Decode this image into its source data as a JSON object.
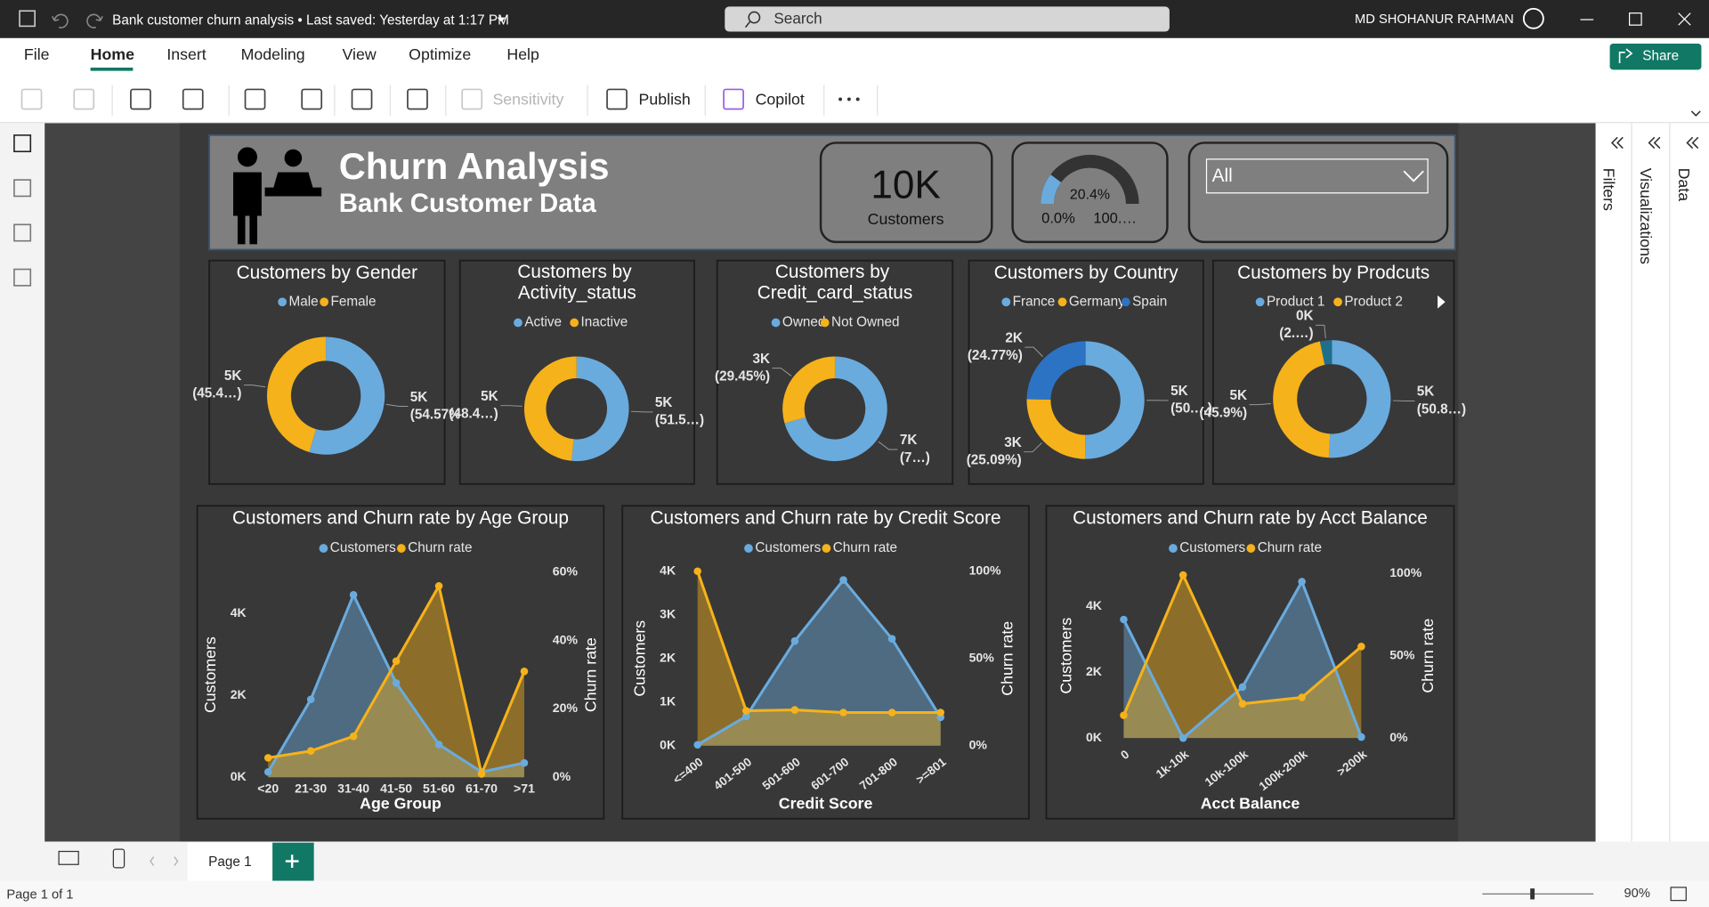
{
  "window": {
    "title": "Bank customer churn analysis • Last saved: Yesterday at 1:17 PM",
    "search": "Search",
    "user": "MD SHOHANUR RAHMAN"
  },
  "menu": [
    "File",
    "Home",
    "Insert",
    "Modeling",
    "View",
    "Optimize",
    "Help"
  ],
  "share": "Share",
  "ribbon": [
    "Sensitivity",
    "Publish",
    "Copilot"
  ],
  "panes": [
    "Filters",
    "Visualizations",
    "Data"
  ],
  "header": {
    "title": "Churn Analysis",
    "subtitle": "Bank Customer Data"
  },
  "card": {
    "value": "10K",
    "label": "Customers"
  },
  "gauge": {
    "value": {
      "value": 20.4,
      "label": "20.4%"
    },
    "min": {
      "value": 0,
      "label": "0.0%"
    },
    "max": {
      "value": 100,
      "label": "100.…"
    }
  },
  "slicer": "All",
  "pages": {
    "tab": "Page 1",
    "status": "Page 1 of 1",
    "zoom": "90%"
  },
  "chart_data": [
    {
      "type": "pie",
      "title": "Customers by Gender",
      "categories": [
        "Male",
        "Female"
      ],
      "values": [
        5457,
        4543
      ],
      "value_labels": [
        "5K",
        "5K"
      ],
      "percent_labels": [
        "(54.57%)",
        "(45.4…)"
      ],
      "colors": [
        "#6AABDE",
        "#F5B21B"
      ]
    },
    {
      "type": "pie",
      "title": "Customers by Activity_status",
      "categories": [
        "Active",
        "Inactive"
      ],
      "values": [
        5151,
        4849
      ],
      "value_labels": [
        "5K",
        "5K"
      ],
      "percent_labels": [
        "(51.5…)",
        "(48.4…)"
      ],
      "colors": [
        "#6AABDE",
        "#F5B21B"
      ]
    },
    {
      "type": "pie",
      "title": "Customers by Credit_card_status",
      "categories": [
        "Owned",
        "Not Owned"
      ],
      "values": [
        7055,
        2945
      ],
      "value_labels": [
        "7K",
        "3K"
      ],
      "percent_labels": [
        "(7…)",
        "(29.45%)"
      ],
      "colors": [
        "#6AABDE",
        "#F5B21B"
      ]
    },
    {
      "type": "pie",
      "title": "Customers by Country",
      "categories": [
        "France",
        "Germany",
        "Spain"
      ],
      "values": [
        5014,
        2509,
        2477
      ],
      "value_labels": [
        "5K",
        "3K",
        "2K"
      ],
      "percent_labels": [
        "(50.…)",
        "(25.09%)",
        "(24.77%)"
      ],
      "colors": [
        "#6AABDE",
        "#F5B21B",
        "#2C73C4"
      ]
    },
    {
      "type": "pie",
      "title": "Customers by Prodcuts",
      "categories": [
        "Product 1",
        "Product 2",
        null
      ],
      "values": [
        5084,
        4590,
        326
      ],
      "value_labels": [
        "5K",
        "5K",
        "0K"
      ],
      "percent_labels": [
        "(50.8…)",
        "(45.9%)",
        "(2.…)"
      ],
      "colors": [
        "#6AABDE",
        "#F5B21B",
        "#1F6E8C"
      ]
    },
    {
      "type": "combo",
      "title": "Customers and Churn rate by Age Group",
      "x_label": "Age Group",
      "y_label": "Customers",
      "y2_label": "Churn rate",
      "categories": [
        "<20",
        "21-30",
        "31-40",
        "41-50",
        "51-60",
        "61-70",
        ">71"
      ],
      "series": [
        {
          "name": "Customers",
          "color": "#6AABDE",
          "values": [
            130,
            1900,
            4450,
            2300,
            800,
            130,
            350
          ]
        },
        {
          "name": "Churn rate",
          "color": "#F5B21B",
          "axis": "y2",
          "values": [
            5.7,
            7.7,
            12,
            34,
            56,
            1,
            31
          ]
        }
      ],
      "ylim": [
        0,
        5000
      ],
      "yticks": [
        {
          "value": 0,
          "label": "0K"
        },
        {
          "value": 2000,
          "label": "2K"
        },
        {
          "value": 4000,
          "label": "4K"
        }
      ],
      "y2lim": [
        0,
        60
      ],
      "y2ticks": [
        {
          "value": 0,
          "label": "0%"
        },
        {
          "value": 20,
          "label": "20%"
        },
        {
          "value": 40,
          "label": "40%"
        },
        {
          "value": 60,
          "label": "60%"
        }
      ]
    },
    {
      "type": "combo",
      "title": "Customers and Churn rate by Credit Score",
      "x_label": "Credit Score",
      "y_label": "Customers",
      "y2_label": "Churn rate",
      "categories": [
        "<=400",
        "401-500",
        "501-600",
        "601-700",
        "701-800",
        ">=801"
      ],
      "series": [
        {
          "name": "Customers",
          "color": "#6AABDE",
          "values": [
            20,
            670,
            2400,
            3800,
            2450,
            650
          ]
        },
        {
          "name": "Churn rate",
          "color": "#F5B21B",
          "axis": "y2",
          "values": [
            100,
            20,
            20.5,
            19,
            19,
            19
          ]
        }
      ],
      "ylim": [
        0,
        4000
      ],
      "yticks": [
        {
          "value": 0,
          "label": "0K"
        },
        {
          "value": 1000,
          "label": "1K"
        },
        {
          "value": 2000,
          "label": "2K"
        },
        {
          "value": 3000,
          "label": "3K"
        },
        {
          "value": 4000,
          "label": "4K"
        }
      ],
      "y2lim": [
        0,
        100
      ],
      "y2ticks": [
        {
          "value": 0,
          "label": "0%"
        },
        {
          "value": 50,
          "label": "50%"
        },
        {
          "value": 100,
          "label": "100%"
        }
      ]
    },
    {
      "type": "combo",
      "title": "Customers and Churn rate by Acct Balance",
      "x_label": "Acct Balance",
      "y_label": "Customers",
      "y2_label": "Churn rate",
      "categories": [
        "0",
        "1k-10k",
        "10k-100k",
        "100k-200k",
        ">200k"
      ],
      "series": [
        {
          "name": "Customers",
          "color": "#6AABDE",
          "values": [
            3600,
            0,
            1550,
            4750,
            30
          ]
        },
        {
          "name": "Churn rate",
          "color": "#F5B21B",
          "axis": "y2",
          "values": [
            13.8,
            99,
            20.8,
            24.7,
            55.6
          ]
        }
      ],
      "ylim": [
        0,
        5000
      ],
      "yticks": [
        {
          "value": 0,
          "label": "0K"
        },
        {
          "value": 2000,
          "label": "2K"
        },
        {
          "value": 4000,
          "label": "4K"
        }
      ],
      "y2lim": [
        0,
        100
      ],
      "y2ticks": [
        {
          "value": 0,
          "label": "0%"
        },
        {
          "value": 50,
          "label": "50%"
        },
        {
          "value": 100,
          "label": "100%"
        }
      ]
    }
  ]
}
